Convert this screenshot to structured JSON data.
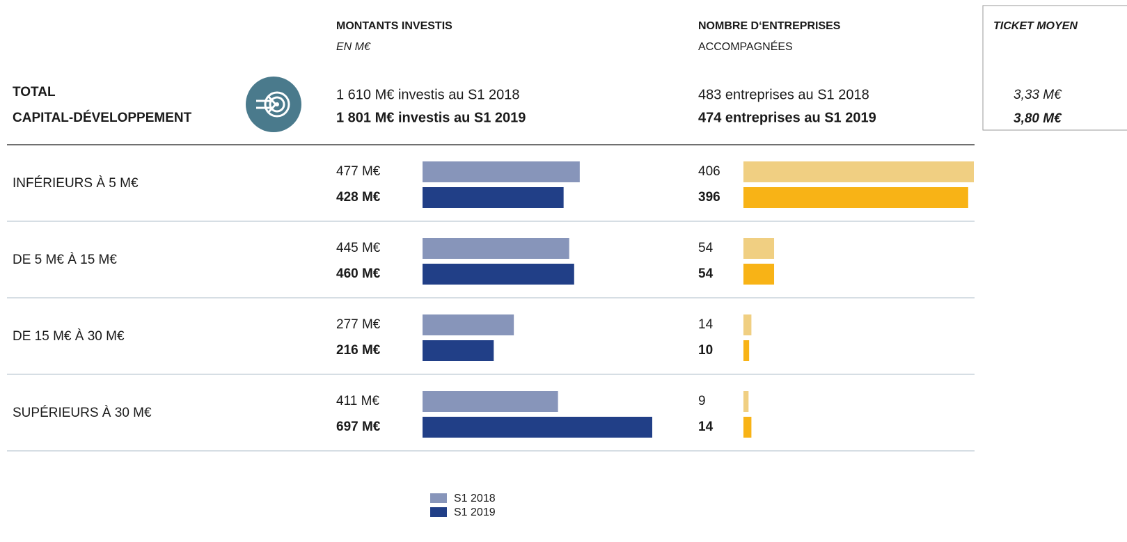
{
  "headers": {
    "amounts_title": "MONTANTS INVESTIS",
    "amounts_subtitle": "EN M€",
    "counts_title": "NOMBRE D‘ENTREPRISES",
    "counts_subtitle": "ACCOMPAGNÉES",
    "ticket_title": "TICKET MOYEN"
  },
  "total": {
    "label": [
      "TOTAL",
      "CAPITAL-DÉVELOPPEMENT"
    ],
    "amounts": [
      "1 610  M€ investis au S1 2018",
      "1 801  M€ investis au S1 2019"
    ],
    "counts": [
      "483 entreprises au S1 2018",
      "474 entreprises au S1 2019"
    ],
    "tickets": [
      "3,33 M€",
      "3,80 M€"
    ]
  },
  "chart_data": [
    {
      "type": "bar",
      "categories": [
        "INFÉRIEURS À 5 M€",
        "DE 5 M€ À 15 M€",
        "DE 15 M€ À 30 M€",
        "SUPÉRIEURS À 30 M€"
      ],
      "series": [
        {
          "name": "S1 2018",
          "color": "#8795ba",
          "values": [
            477,
            445,
            277,
            411
          ],
          "value_labels": [
            "477 M€",
            "445 M€",
            "277 M€",
            "411 M€"
          ]
        },
        {
          "name": "S1 2019",
          "color": "#213f87",
          "values": [
            428,
            460,
            216,
            697
          ],
          "value_labels": [
            "428 M€",
            "460 M€",
            "216 M€",
            "697 M€"
          ]
        }
      ]
    },
    {
      "type": "bar",
      "series": [
        {
          "color": "#f0cf82",
          "values": [
            406,
            54,
            14,
            9
          ]
        },
        {
          "color": "#f8b316",
          "values": [
            396,
            54,
            10,
            14
          ]
        }
      ]
    }
  ]
}
